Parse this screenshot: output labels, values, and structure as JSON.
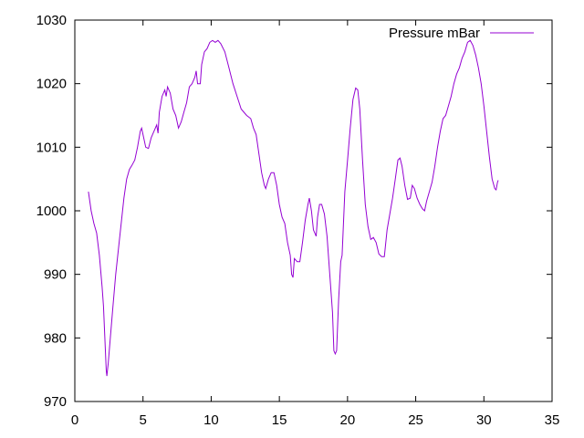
{
  "chart_data": {
    "type": "line",
    "xlim": [
      0,
      35
    ],
    "ylim": [
      970,
      1030
    ],
    "x_ticks": [
      0,
      5,
      10,
      15,
      20,
      25,
      30,
      35
    ],
    "y_ticks": [
      970,
      980,
      990,
      1000,
      1010,
      1020,
      1030
    ],
    "grid": false,
    "legend_position": "top-right",
    "series": [
      {
        "name": "Pressure mBar",
        "color": "#9400d3",
        "points": [
          [
            1.0,
            1003
          ],
          [
            1.2,
            1000
          ],
          [
            1.4,
            998
          ],
          [
            1.6,
            996.5
          ],
          [
            1.8,
            993
          ],
          [
            2.0,
            988
          ],
          [
            2.1,
            985
          ],
          [
            2.2,
            980
          ],
          [
            2.3,
            975
          ],
          [
            2.35,
            974
          ],
          [
            2.45,
            976
          ],
          [
            2.6,
            980
          ],
          [
            2.8,
            985
          ],
          [
            3.0,
            990
          ],
          [
            3.2,
            994
          ],
          [
            3.4,
            998
          ],
          [
            3.6,
            1002
          ],
          [
            3.8,
            1005
          ],
          [
            4.0,
            1006.5
          ],
          [
            4.2,
            1007.2
          ],
          [
            4.4,
            1008
          ],
          [
            4.6,
            1010
          ],
          [
            4.8,
            1012.5
          ],
          [
            4.9,
            1013
          ],
          [
            5.0,
            1012
          ],
          [
            5.2,
            1010
          ],
          [
            5.4,
            1009.8
          ],
          [
            5.6,
            1011.5
          ],
          [
            5.8,
            1012.5
          ],
          [
            6.0,
            1013.5
          ],
          [
            6.1,
            1012.2
          ],
          [
            6.2,
            1015.5
          ],
          [
            6.4,
            1018
          ],
          [
            6.6,
            1019
          ],
          [
            6.7,
            1018
          ],
          [
            6.8,
            1019.5
          ],
          [
            7.0,
            1018.5
          ],
          [
            7.2,
            1016
          ],
          [
            7.4,
            1015
          ],
          [
            7.6,
            1013
          ],
          [
            7.8,
            1014
          ],
          [
            8.0,
            1015.5
          ],
          [
            8.2,
            1017
          ],
          [
            8.4,
            1019.5
          ],
          [
            8.6,
            1020
          ],
          [
            8.8,
            1021
          ],
          [
            8.9,
            1022
          ],
          [
            9.0,
            1020
          ],
          [
            9.2,
            1020
          ],
          [
            9.3,
            1023
          ],
          [
            9.5,
            1025
          ],
          [
            9.7,
            1025.5
          ],
          [
            9.9,
            1026.5
          ],
          [
            10.1,
            1026.8
          ],
          [
            10.3,
            1026.5
          ],
          [
            10.5,
            1026.8
          ],
          [
            10.7,
            1026.3
          ],
          [
            11.0,
            1025
          ],
          [
            11.3,
            1022.5
          ],
          [
            11.6,
            1020
          ],
          [
            11.9,
            1018
          ],
          [
            12.2,
            1016
          ],
          [
            12.4,
            1015.5
          ],
          [
            12.6,
            1015
          ],
          [
            12.9,
            1014.5
          ],
          [
            13.1,
            1013
          ],
          [
            13.3,
            1012
          ],
          [
            13.5,
            1009
          ],
          [
            13.7,
            1006
          ],
          [
            13.9,
            1004
          ],
          [
            14.0,
            1003.5
          ],
          [
            14.2,
            1005
          ],
          [
            14.4,
            1006
          ],
          [
            14.6,
            1006
          ],
          [
            14.8,
            1004
          ],
          [
            15.0,
            1001
          ],
          [
            15.2,
            999
          ],
          [
            15.4,
            998
          ],
          [
            15.6,
            995
          ],
          [
            15.8,
            993
          ],
          [
            15.9,
            990
          ],
          [
            16.0,
            989.5
          ],
          [
            16.1,
            992.5
          ],
          [
            16.3,
            992
          ],
          [
            16.5,
            992
          ],
          [
            16.7,
            995
          ],
          [
            16.9,
            998.5
          ],
          [
            17.1,
            1001
          ],
          [
            17.2,
            1002
          ],
          [
            17.35,
            1000
          ],
          [
            17.5,
            997
          ],
          [
            17.7,
            996
          ],
          [
            17.8,
            999
          ],
          [
            17.95,
            1001
          ],
          [
            18.1,
            1001
          ],
          [
            18.3,
            999.5
          ],
          [
            18.5,
            996
          ],
          [
            18.7,
            990
          ],
          [
            18.9,
            984
          ],
          [
            19.0,
            978
          ],
          [
            19.1,
            977.5
          ],
          [
            19.2,
            978
          ],
          [
            19.35,
            986
          ],
          [
            19.5,
            992
          ],
          [
            19.6,
            993
          ],
          [
            19.8,
            1003
          ],
          [
            20.0,
            1008
          ],
          [
            20.2,
            1013
          ],
          [
            20.4,
            1017.5
          ],
          [
            20.6,
            1019.3
          ],
          [
            20.75,
            1019
          ],
          [
            20.9,
            1016
          ],
          [
            21.1,
            1008
          ],
          [
            21.3,
            1001
          ],
          [
            21.5,
            997.5
          ],
          [
            21.7,
            995.5
          ],
          [
            21.9,
            995.8
          ],
          [
            22.1,
            995
          ],
          [
            22.3,
            993.2
          ],
          [
            22.5,
            992.8
          ],
          [
            22.7,
            992.8
          ],
          [
            22.9,
            997
          ],
          [
            23.1,
            999.5
          ],
          [
            23.3,
            1002
          ],
          [
            23.5,
            1005
          ],
          [
            23.7,
            1008
          ],
          [
            23.85,
            1008.3
          ],
          [
            24.0,
            1007
          ],
          [
            24.2,
            1004
          ],
          [
            24.4,
            1001.8
          ],
          [
            24.6,
            1002
          ],
          [
            24.75,
            1004
          ],
          [
            24.9,
            1003.5
          ],
          [
            25.1,
            1002
          ],
          [
            25.3,
            1001
          ],
          [
            25.5,
            1000.3
          ],
          [
            25.65,
            1000
          ],
          [
            25.8,
            1001.5
          ],
          [
            26.0,
            1003
          ],
          [
            26.2,
            1004.5
          ],
          [
            26.4,
            1007
          ],
          [
            26.6,
            1010
          ],
          [
            26.8,
            1012.5
          ],
          [
            27.0,
            1014.5
          ],
          [
            27.2,
            1015
          ],
          [
            27.4,
            1016.5
          ],
          [
            27.6,
            1018
          ],
          [
            27.8,
            1020
          ],
          [
            28.0,
            1021.5
          ],
          [
            28.2,
            1022.5
          ],
          [
            28.4,
            1024
          ],
          [
            28.6,
            1025
          ],
          [
            28.8,
            1026.5
          ],
          [
            29.0,
            1026.8
          ],
          [
            29.2,
            1026
          ],
          [
            29.4,
            1024.5
          ],
          [
            29.6,
            1022.5
          ],
          [
            29.8,
            1020
          ],
          [
            30.0,
            1016.5
          ],
          [
            30.2,
            1012.5
          ],
          [
            30.4,
            1008.5
          ],
          [
            30.6,
            1005
          ],
          [
            30.8,
            1003.5
          ],
          [
            30.9,
            1003.3
          ],
          [
            31.0,
            1004.5
          ],
          [
            31.05,
            1004.8
          ]
        ]
      }
    ]
  }
}
